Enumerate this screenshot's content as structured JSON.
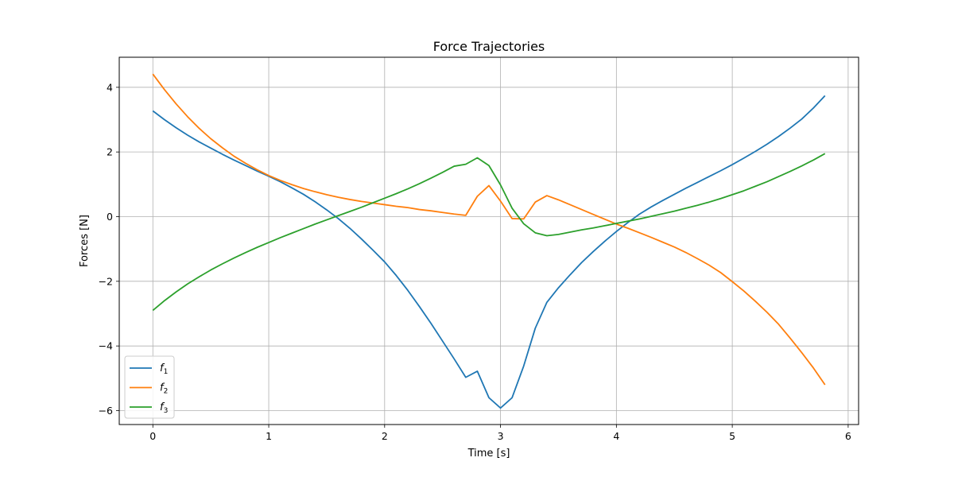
{
  "chart_data": {
    "type": "line",
    "title": "Force Trajectories",
    "xlabel": "Time [s]",
    "ylabel": "Forces [N]",
    "xlim": [
      -0.29,
      6.09
    ],
    "ylim": [
      -6.43,
      4.93
    ],
    "xticks": [
      0,
      1,
      2,
      3,
      4,
      5,
      6
    ],
    "yticks": [
      -6,
      -4,
      -2,
      0,
      2,
      4
    ],
    "xtick_labels": [
      "0",
      "1",
      "2",
      "3",
      "4",
      "5",
      "6"
    ],
    "ytick_labels": [
      "−6",
      "−4",
      "−2",
      "0",
      "2",
      "4"
    ],
    "grid": true,
    "legend_position": "lower-left",
    "x": [
      0.0,
      0.1,
      0.2,
      0.3,
      0.4,
      0.5,
      0.6,
      0.7,
      0.8,
      0.9,
      1.0,
      1.1,
      1.2,
      1.3,
      1.4,
      1.5,
      1.6,
      1.7,
      1.8,
      1.9,
      2.0,
      2.1,
      2.2,
      2.3,
      2.4,
      2.5,
      2.6,
      2.7,
      2.8,
      2.9,
      3.0,
      3.1,
      3.2,
      3.3,
      3.4,
      3.5,
      3.6,
      3.7,
      3.8,
      3.9,
      4.0,
      4.1,
      4.2,
      4.3,
      4.4,
      4.5,
      4.6,
      4.7,
      4.8,
      4.9,
      5.0,
      5.1,
      5.2,
      5.3,
      5.4,
      5.5,
      5.6,
      5.7,
      5.8
    ],
    "series": [
      {
        "name": "f",
        "subscript": "1",
        "color": "#1f77b4",
        "values": [
          3.27,
          3.0,
          2.75,
          2.52,
          2.31,
          2.12,
          1.93,
          1.75,
          1.58,
          1.41,
          1.25,
          1.08,
          0.89,
          0.69,
          0.46,
          0.21,
          -0.06,
          -0.36,
          -0.69,
          -1.04,
          -1.4,
          -1.82,
          -2.28,
          -2.78,
          -3.3,
          -3.85,
          -4.4,
          -4.97,
          -4.78,
          -5.6,
          -5.92,
          -5.6,
          -4.62,
          -3.45,
          -2.65,
          -2.2,
          -1.8,
          -1.42,
          -1.08,
          -0.76,
          -0.46,
          -0.18,
          0.08,
          0.3,
          0.5,
          0.69,
          0.88,
          1.06,
          1.24,
          1.42,
          1.61,
          1.81,
          2.02,
          2.24,
          2.48,
          2.74,
          3.02,
          3.36,
          3.74
        ]
      },
      {
        "name": "f",
        "subscript": "2",
        "color": "#ff7f0e",
        "values": [
          4.41,
          3.93,
          3.49,
          3.09,
          2.73,
          2.41,
          2.13,
          1.87,
          1.65,
          1.45,
          1.27,
          1.12,
          0.99,
          0.87,
          0.77,
          0.68,
          0.6,
          0.53,
          0.47,
          0.42,
          0.37,
          0.32,
          0.28,
          0.22,
          0.18,
          0.13,
          0.08,
          0.04,
          0.63,
          0.96,
          0.48,
          -0.06,
          -0.07,
          0.45,
          0.65,
          0.52,
          0.37,
          0.22,
          0.07,
          -0.08,
          -0.23,
          -0.36,
          -0.5,
          -0.64,
          -0.79,
          -0.94,
          -1.11,
          -1.3,
          -1.5,
          -1.73,
          -2.01,
          -2.3,
          -2.62,
          -2.96,
          -3.33,
          -3.76,
          -4.21,
          -4.68,
          -5.2
        ]
      },
      {
        "name": "f",
        "subscript": "3",
        "color": "#2ca02c",
        "values": [
          -2.9,
          -2.6,
          -2.33,
          -2.08,
          -1.86,
          -1.65,
          -1.46,
          -1.28,
          -1.11,
          -0.95,
          -0.8,
          -0.65,
          -0.51,
          -0.37,
          -0.23,
          -0.1,
          0.03,
          0.16,
          0.29,
          0.43,
          0.57,
          0.71,
          0.86,
          1.02,
          1.19,
          1.37,
          1.56,
          1.62,
          1.82,
          1.58,
          0.98,
          0.26,
          -0.22,
          -0.5,
          -0.59,
          -0.55,
          -0.48,
          -0.41,
          -0.35,
          -0.28,
          -0.21,
          -0.14,
          -0.07,
          0.01,
          0.09,
          0.17,
          0.26,
          0.35,
          0.45,
          0.56,
          0.68,
          0.8,
          0.94,
          1.08,
          1.24,
          1.4,
          1.57,
          1.75,
          1.95
        ]
      }
    ]
  }
}
